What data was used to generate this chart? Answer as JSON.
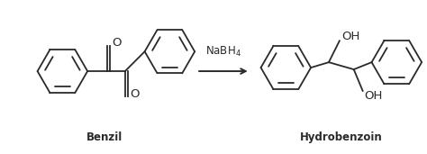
{
  "background_color": "#ffffff",
  "arrow_label": "NaBH$_4$",
  "left_label": "Benzil",
  "right_label": "Hydrobenzoin",
  "figsize": [
    4.74,
    1.71
  ],
  "dpi": 100,
  "line_color": "#2a2a2a",
  "line_width": 1.3,
  "font_size": 8.5,
  "label_font_size": 8.5
}
